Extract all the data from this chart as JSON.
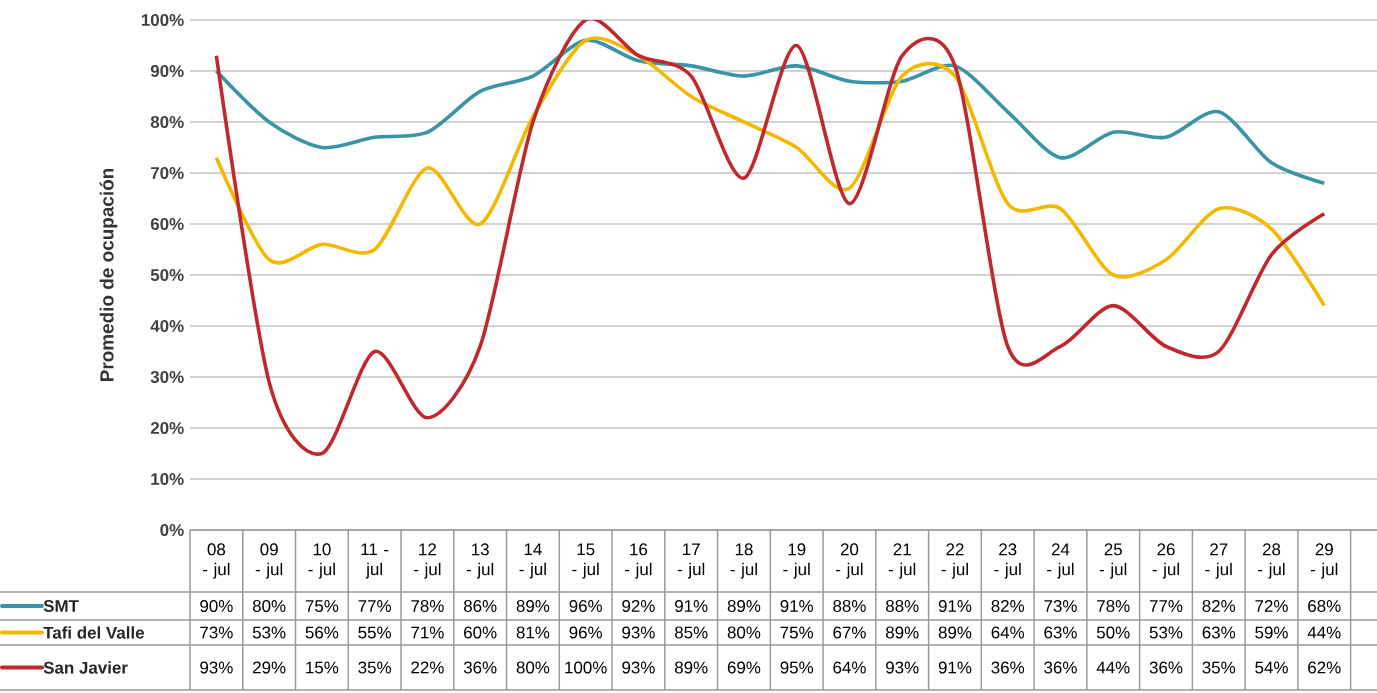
{
  "chart_data": {
    "type": "line",
    "ylabel": "Promedio de ocupación",
    "categories": [
      "08 - jul",
      "09 - jul",
      "10 - jul",
      "11 - jul",
      "12 - jul",
      "13 - jul",
      "14 - jul",
      "15 - jul",
      "16 - jul",
      "17 - jul",
      "18 - jul",
      "19 - jul",
      "20 - jul",
      "21 - jul",
      "22 - jul",
      "23 - jul",
      "24 - jul",
      "25 - jul",
      "26 - jul",
      "27 - jul",
      "28 - jul",
      "29 - jul"
    ],
    "series": [
      {
        "name": "SMT",
        "color": "#3a93a6",
        "values": [
          90,
          80,
          75,
          77,
          78,
          86,
          89,
          96,
          92,
          91,
          89,
          91,
          88,
          88,
          91,
          82,
          73,
          78,
          77,
          82,
          72,
          68
        ],
        "value_labels": [
          "90%",
          "80%",
          "75%",
          "77%",
          "78%",
          "86%",
          "89%",
          "96%",
          "92%",
          "91%",
          "89%",
          "91%",
          "88%",
          "88%",
          "91%",
          "82%",
          "73%",
          "78%",
          "77%",
          "82%",
          "72%",
          "68%"
        ]
      },
      {
        "name": "Tafi del Valle",
        "color": "#f5b800",
        "values": [
          73,
          53,
          56,
          55,
          71,
          60,
          81,
          96,
          93,
          85,
          80,
          75,
          67,
          89,
          89,
          64,
          63,
          50,
          53,
          63,
          59,
          44
        ],
        "value_labels": [
          "73%",
          "53%",
          "56%",
          "55%",
          "71%",
          "60%",
          "81%",
          "96%",
          "93%",
          "85%",
          "80%",
          "75%",
          "67%",
          "89%",
          "89%",
          "64%",
          "63%",
          "50%",
          "53%",
          "63%",
          "59%",
          "44%"
        ]
      },
      {
        "name": "San Javier",
        "color": "#c0282d",
        "values": [
          93,
          29,
          15,
          35,
          22,
          36,
          80,
          100,
          93,
          89,
          69,
          95,
          64,
          93,
          91,
          36,
          36,
          44,
          36,
          35,
          54,
          62
        ],
        "value_labels": [
          "93%",
          "29%",
          "15%",
          "35%",
          "22%",
          "36%",
          "80%",
          "100%",
          "93%",
          "89%",
          "69%",
          "95%",
          "64%",
          "93%",
          "91%",
          "36%",
          "36%",
          "44%",
          "36%",
          "35%",
          "54%",
          "62%"
        ]
      }
    ],
    "ylim": [
      0,
      100
    ],
    "yticks": [
      {
        "value": 0,
        "label": "0%"
      },
      {
        "value": 10,
        "label": "10%"
      },
      {
        "value": 20,
        "label": "20%"
      },
      {
        "value": 30,
        "label": "30%"
      },
      {
        "value": 40,
        "label": "40%"
      },
      {
        "value": 50,
        "label": "50%"
      },
      {
        "value": 60,
        "label": "60%"
      },
      {
        "value": 70,
        "label": "70%"
      },
      {
        "value": 80,
        "label": "80%"
      },
      {
        "value": 90,
        "label": "90%"
      },
      {
        "value": 100,
        "label": "100%"
      }
    ],
    "grid": "y",
    "legend": "bottom left",
    "marker": "none",
    "line_style": "solid"
  }
}
